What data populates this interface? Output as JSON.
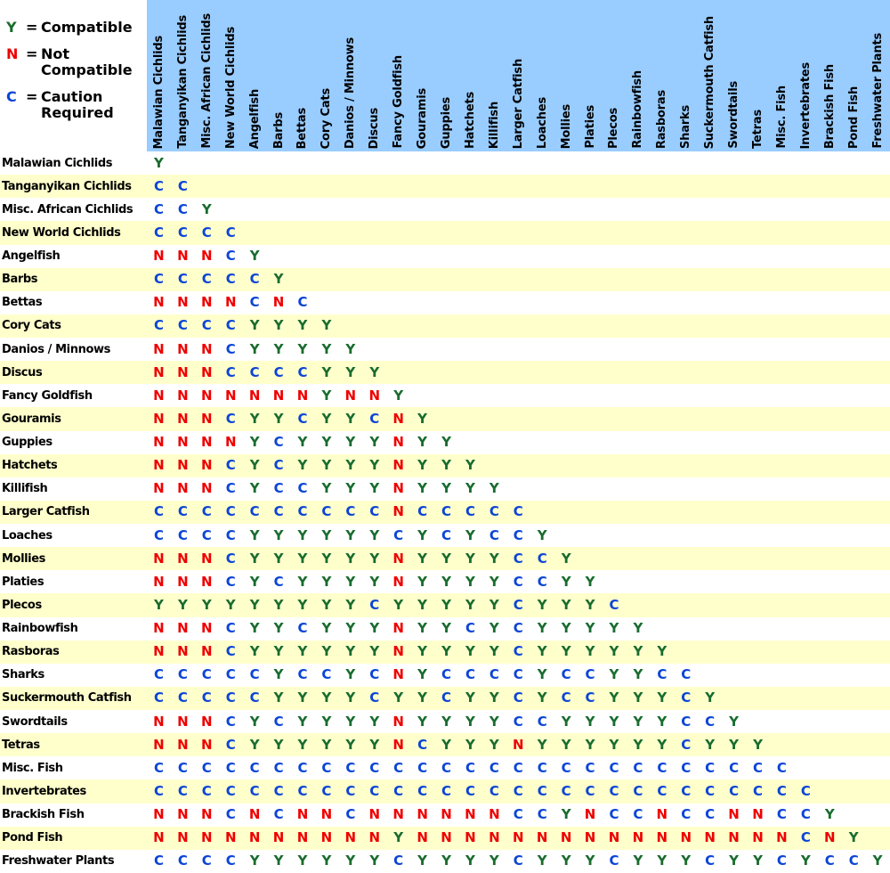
{
  "legend": {
    "items": [
      {
        "symbol": "Y",
        "eq": "=",
        "line1": "Compatible"
      },
      {
        "symbol": "N",
        "eq": "=",
        "line1": "Not",
        "line2": "Compatible"
      },
      {
        "symbol": "C",
        "eq": "=",
        "line1": "Caution",
        "line2": "Required"
      }
    ]
  },
  "colors": {
    "Y": "#186c2e",
    "N": "#ee0000",
    "C": "#0b44d6",
    "header_bg": "#99ccff",
    "row_alt_bg": "#ffffcc",
    "row_bg": "#ffffff",
    "label_color": "#000000"
  },
  "chart_data": {
    "type": "table",
    "value_meanings": {
      "Y": "Compatible",
      "N": "Not Compatible",
      "C": "Caution Required"
    },
    "categories": [
      "Malawian Cichlids",
      "Tanganyikan Cichlids",
      "Misc. African Cichlids",
      "New World Cichlids",
      "Angelfish",
      "Barbs",
      "Bettas",
      "Cory Cats",
      "Danios / Minnows",
      "Discus",
      "Fancy Goldfish",
      "Gouramis",
      "Guppies",
      "Hatchets",
      "Killifish",
      "Larger Catfish",
      "Loaches",
      "Mollies",
      "Platies",
      "Plecos",
      "Rainbowfish",
      "Rasboras",
      "Sharks",
      "Suckermouth Catfish",
      "Swordtails",
      "Tetras",
      "Misc. Fish",
      "Invertebrates",
      "Brackish Fish",
      "Pond Fish",
      "Freshwater Plants"
    ],
    "matrix": [
      [
        "Y"
      ],
      [
        "C",
        "C"
      ],
      [
        "C",
        "C",
        "Y"
      ],
      [
        "C",
        "C",
        "C",
        "C"
      ],
      [
        "N",
        "N",
        "N",
        "C",
        "Y"
      ],
      [
        "C",
        "C",
        "C",
        "C",
        "C",
        "Y"
      ],
      [
        "N",
        "N",
        "N",
        "N",
        "C",
        "N",
        "C"
      ],
      [
        "C",
        "C",
        "C",
        "C",
        "Y",
        "Y",
        "Y",
        "Y"
      ],
      [
        "N",
        "N",
        "N",
        "C",
        "Y",
        "Y",
        "Y",
        "Y",
        "Y"
      ],
      [
        "N",
        "N",
        "N",
        "C",
        "C",
        "C",
        "C",
        "Y",
        "Y",
        "Y"
      ],
      [
        "N",
        "N",
        "N",
        "N",
        "N",
        "N",
        "N",
        "Y",
        "N",
        "N",
        "Y"
      ],
      [
        "N",
        "N",
        "N",
        "C",
        "Y",
        "Y",
        "C",
        "Y",
        "Y",
        "C",
        "N",
        "Y"
      ],
      [
        "N",
        "N",
        "N",
        "N",
        "Y",
        "C",
        "Y",
        "Y",
        "Y",
        "Y",
        "N",
        "Y",
        "Y"
      ],
      [
        "N",
        "N",
        "N",
        "C",
        "Y",
        "C",
        "Y",
        "Y",
        "Y",
        "Y",
        "N",
        "Y",
        "Y",
        "Y"
      ],
      [
        "N",
        "N",
        "N",
        "C",
        "Y",
        "C",
        "C",
        "Y",
        "Y",
        "Y",
        "N",
        "Y",
        "Y",
        "Y",
        "Y"
      ],
      [
        "C",
        "C",
        "C",
        "C",
        "C",
        "C",
        "C",
        "C",
        "C",
        "C",
        "N",
        "C",
        "C",
        "C",
        "C",
        "C"
      ],
      [
        "C",
        "C",
        "C",
        "C",
        "Y",
        "Y",
        "Y",
        "Y",
        "Y",
        "Y",
        "C",
        "Y",
        "C",
        "Y",
        "C",
        "C",
        "Y"
      ],
      [
        "N",
        "N",
        "N",
        "C",
        "Y",
        "Y",
        "Y",
        "Y",
        "Y",
        "Y",
        "N",
        "Y",
        "Y",
        "Y",
        "Y",
        "C",
        "C",
        "Y"
      ],
      [
        "N",
        "N",
        "N",
        "C",
        "Y",
        "C",
        "Y",
        "Y",
        "Y",
        "Y",
        "N",
        "Y",
        "Y",
        "Y",
        "Y",
        "C",
        "C",
        "Y",
        "Y"
      ],
      [
        "Y",
        "Y",
        "Y",
        "Y",
        "Y",
        "Y",
        "Y",
        "Y",
        "Y",
        "C",
        "Y",
        "Y",
        "Y",
        "Y",
        "Y",
        "C",
        "Y",
        "Y",
        "Y",
        "C"
      ],
      [
        "N",
        "N",
        "N",
        "C",
        "Y",
        "Y",
        "C",
        "Y",
        "Y",
        "Y",
        "N",
        "Y",
        "Y",
        "C",
        "Y",
        "C",
        "Y",
        "Y",
        "Y",
        "Y",
        "Y"
      ],
      [
        "N",
        "N",
        "N",
        "C",
        "Y",
        "Y",
        "Y",
        "Y",
        "Y",
        "Y",
        "N",
        "Y",
        "Y",
        "Y",
        "Y",
        "C",
        "Y",
        "Y",
        "Y",
        "Y",
        "Y",
        "Y"
      ],
      [
        "C",
        "C",
        "C",
        "C",
        "C",
        "Y",
        "C",
        "C",
        "Y",
        "C",
        "N",
        "Y",
        "C",
        "C",
        "C",
        "C",
        "Y",
        "C",
        "C",
        "Y",
        "Y",
        "C",
        "C"
      ],
      [
        "C",
        "C",
        "C",
        "C",
        "C",
        "Y",
        "Y",
        "Y",
        "Y",
        "C",
        "Y",
        "Y",
        "C",
        "Y",
        "Y",
        "C",
        "Y",
        "C",
        "C",
        "Y",
        "Y",
        "Y",
        "C",
        "Y"
      ],
      [
        "N",
        "N",
        "N",
        "C",
        "Y",
        "C",
        "Y",
        "Y",
        "Y",
        "Y",
        "N",
        "Y",
        "Y",
        "Y",
        "Y",
        "C",
        "C",
        "Y",
        "Y",
        "Y",
        "Y",
        "Y",
        "C",
        "C",
        "Y"
      ],
      [
        "N",
        "N",
        "N",
        "C",
        "Y",
        "Y",
        "Y",
        "Y",
        "Y",
        "Y",
        "N",
        "C",
        "Y",
        "Y",
        "Y",
        "N",
        "Y",
        "Y",
        "Y",
        "Y",
        "Y",
        "Y",
        "C",
        "Y",
        "Y",
        "Y"
      ],
      [
        "C",
        "C",
        "C",
        "C",
        "C",
        "C",
        "C",
        "C",
        "C",
        "C",
        "C",
        "C",
        "C",
        "C",
        "C",
        "C",
        "C",
        "C",
        "C",
        "C",
        "C",
        "C",
        "C",
        "C",
        "C",
        "C",
        "C"
      ],
      [
        "C",
        "C",
        "C",
        "C",
        "C",
        "C",
        "C",
        "C",
        "C",
        "C",
        "C",
        "C",
        "C",
        "C",
        "C",
        "C",
        "C",
        "C",
        "C",
        "C",
        "C",
        "C",
        "C",
        "C",
        "C",
        "C",
        "C",
        "C"
      ],
      [
        "N",
        "N",
        "N",
        "C",
        "N",
        "C",
        "N",
        "N",
        "C",
        "N",
        "N",
        "N",
        "N",
        "N",
        "N",
        "C",
        "C",
        "Y",
        "N",
        "C",
        "C",
        "N",
        "C",
        "C",
        "N",
        "N",
        "C",
        "C",
        "Y"
      ],
      [
        "N",
        "N",
        "N",
        "N",
        "N",
        "N",
        "N",
        "N",
        "N",
        "N",
        "Y",
        "N",
        "N",
        "N",
        "N",
        "N",
        "N",
        "N",
        "N",
        "N",
        "N",
        "N",
        "N",
        "N",
        "N",
        "N",
        "N",
        "C",
        "N",
        "Y"
      ],
      [
        "C",
        "C",
        "C",
        "C",
        "Y",
        "Y",
        "Y",
        "Y",
        "Y",
        "Y",
        "C",
        "Y",
        "Y",
        "Y",
        "Y",
        "C",
        "Y",
        "Y",
        "Y",
        "C",
        "Y",
        "Y",
        "Y",
        "C",
        "Y",
        "Y",
        "C",
        "Y",
        "C",
        "C",
        "Y"
      ]
    ]
  }
}
